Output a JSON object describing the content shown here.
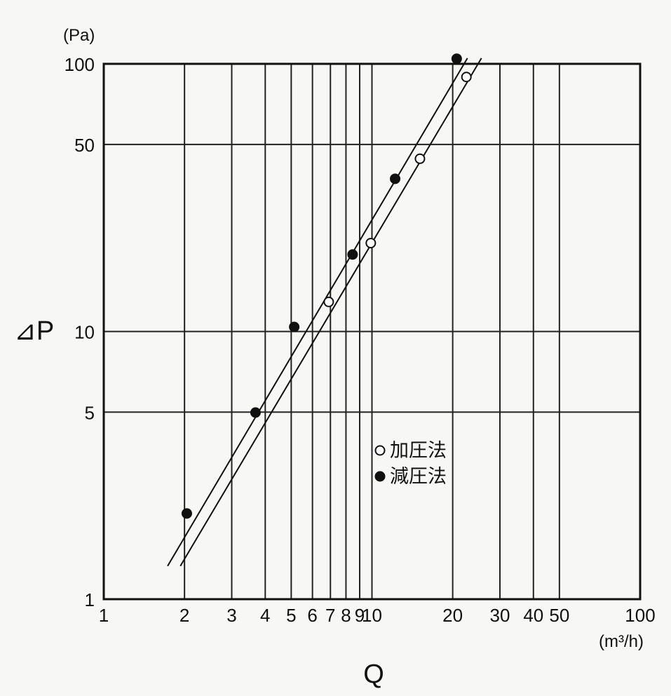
{
  "chart_data": {
    "type": "scatter",
    "xscale": "log",
    "yscale": "log",
    "xlim": [
      1,
      100
    ],
    "ylim": [
      1,
      100
    ],
    "xlabel": "Q",
    "ylabel": "⊿P",
    "xunit": "(m³/h)",
    "yunit": "(Pa)",
    "xticks": [
      {
        "value": 1,
        "label": "1"
      },
      {
        "value": 2,
        "label": "2"
      },
      {
        "value": 3,
        "label": "3"
      },
      {
        "value": 4,
        "label": "4"
      },
      {
        "value": 5,
        "label": "5"
      },
      {
        "value": 6,
        "label": "6"
      },
      {
        "value": 7,
        "label": "7"
      },
      {
        "value": 8,
        "label": "8"
      },
      {
        "value": 9,
        "label": "9"
      },
      {
        "value": 10,
        "label": "10"
      },
      {
        "value": 20,
        "label": "20"
      },
      {
        "value": 30,
        "label": "30"
      },
      {
        "value": 40,
        "label": "40"
      },
      {
        "value": 50,
        "label": "50"
      },
      {
        "value": 100,
        "label": "100"
      }
    ],
    "yticks": [
      {
        "value": 1,
        "label": "1"
      },
      {
        "value": 5,
        "label": "5"
      },
      {
        "value": 10,
        "label": "10"
      },
      {
        "value": 50,
        "label": "50"
      },
      {
        "value": 100,
        "label": "100"
      }
    ],
    "grid": true,
    "legend_position": "center-right",
    "series": [
      {
        "name": "加圧法",
        "marker": "open-circle",
        "color": "#111111",
        "points": [
          [
            6.9,
            12.9
          ],
          [
            9.9,
            21.4
          ],
          [
            15.1,
            44.2
          ],
          [
            22.5,
            89.3
          ]
        ],
        "fit": [
          [
            1.93,
            1.33
          ],
          [
            25.6,
            105
          ]
        ]
      },
      {
        "name": "減圧法",
        "marker": "filled-circle",
        "color": "#111111",
        "points": [
          [
            2.04,
            2.09
          ],
          [
            3.68,
            4.98
          ],
          [
            5.13,
            10.4
          ],
          [
            8.47,
            19.4
          ],
          [
            12.2,
            37.2
          ],
          [
            20.7,
            104.5
          ]
        ],
        "fit": [
          [
            1.73,
            1.33
          ],
          [
            22.7,
            105
          ]
        ]
      }
    ]
  }
}
